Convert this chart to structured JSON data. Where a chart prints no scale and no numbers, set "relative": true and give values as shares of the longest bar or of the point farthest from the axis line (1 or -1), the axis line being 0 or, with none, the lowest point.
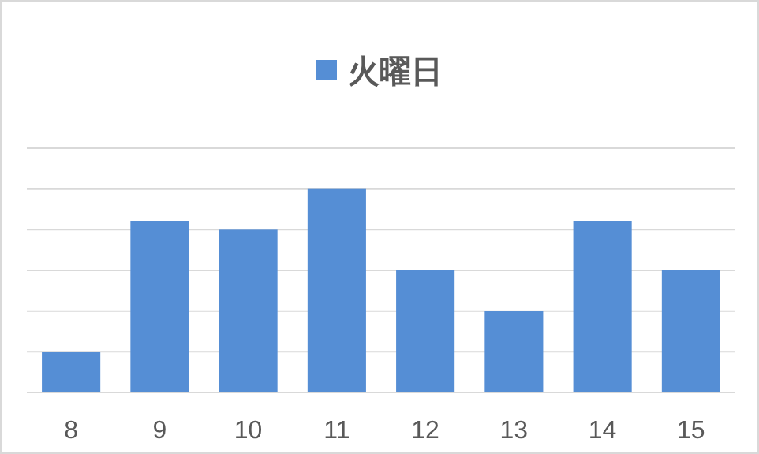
{
  "chart_data": {
    "type": "bar",
    "relative": true,
    "categories": [
      "8",
      "9",
      "10",
      "11",
      "12",
      "13",
      "14",
      "15"
    ],
    "series": [
      {
        "name": "火曜日",
        "color": "#558ed5",
        "values": [
          0.2,
          0.84,
          0.8,
          1,
          0.6,
          0.4,
          0.84,
          0.6
        ]
      }
    ],
    "grid": "y",
    "legend": "top"
  }
}
